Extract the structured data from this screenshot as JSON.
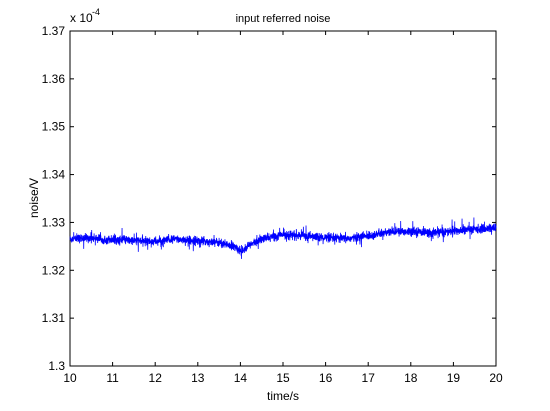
{
  "chart_data": {
    "type": "line",
    "title": "input referred noise",
    "xlabel": "time/s",
    "ylabel": "noise/V",
    "y_multiplier": "x 10",
    "y_exponent": "-4",
    "xlim": [
      10,
      20
    ],
    "ylim": [
      1.3,
      1.37
    ],
    "x_ticks": [
      10,
      11,
      12,
      13,
      14,
      15,
      16,
      17,
      18,
      19,
      20
    ],
    "x_tick_labels": [
      "10",
      "11",
      "12",
      "13",
      "14",
      "15",
      "16",
      "17",
      "18",
      "19",
      "20"
    ],
    "y_ticks": [
      1.3,
      1.31,
      1.32,
      1.33,
      1.34,
      1.35,
      1.36,
      1.37
    ],
    "y_tick_labels": [
      "1.3",
      "1.31",
      "1.32",
      "1.33",
      "1.34",
      "1.35",
      "1.36",
      "1.37"
    ],
    "grid": false,
    "series": [
      {
        "color": "#0000ff",
        "x": [
          10,
          10.5,
          11,
          11.5,
          12,
          12.5,
          13,
          13.5,
          13.9,
          14,
          14.2,
          14.5,
          15,
          15.5,
          16,
          16.5,
          17,
          17.5,
          18,
          18.5,
          19,
          19.5,
          20
        ],
        "y": [
          1.3265,
          1.3268,
          1.3264,
          1.3262,
          1.326,
          1.3265,
          1.3262,
          1.3258,
          1.3248,
          1.324,
          1.3252,
          1.3265,
          1.3275,
          1.3272,
          1.3268,
          1.3266,
          1.3272,
          1.328,
          1.3282,
          1.3278,
          1.3282,
          1.3286,
          1.3288
        ]
      }
    ]
  }
}
